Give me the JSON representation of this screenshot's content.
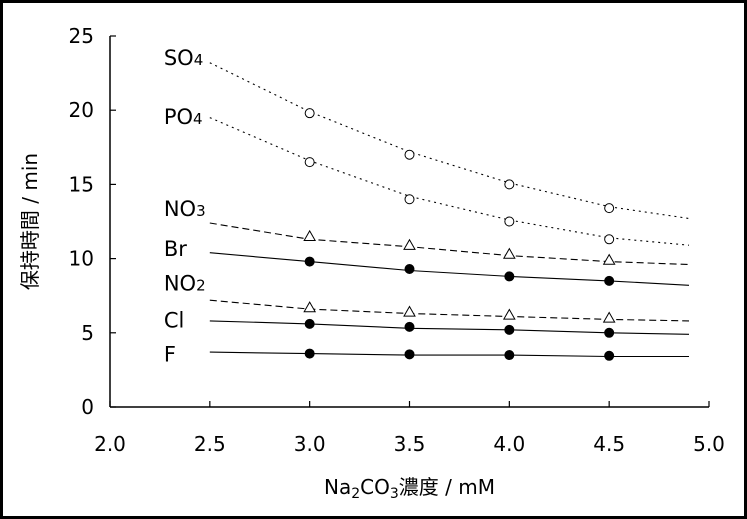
{
  "chart_data": {
    "type": "line",
    "title": "",
    "xlabel": "Na2CO3濃度 / mM",
    "xlabel_parts": [
      {
        "text": "Na",
        "sub": false
      },
      {
        "text": "2",
        "sub": true
      },
      {
        "text": "CO",
        "sub": false
      },
      {
        "text": "3",
        "sub": true
      },
      {
        "text": "濃度 / mM",
        "sub": false
      }
    ],
    "ylabel": "保持時間 / min",
    "xlim": [
      2.0,
      5.0
    ],
    "ylim": [
      0,
      25
    ],
    "x_ticks": [
      "2.0",
      "2.5",
      "3.0",
      "3.5",
      "4.0",
      "4.5",
      "5.0"
    ],
    "y_ticks": [
      "0",
      "5",
      "10",
      "15",
      "20",
      "25"
    ],
    "grid": false,
    "legend": "none",
    "series": [
      {
        "name": "SO4",
        "name_main": "SO",
        "name_sub": "4",
        "marker": "open-circle",
        "line": "dotted",
        "points": [
          [
            3.0,
            19.8
          ],
          [
            3.5,
            17.0
          ],
          [
            4.0,
            15.0
          ],
          [
            4.5,
            13.4
          ]
        ],
        "fit": [
          [
            2.5,
            23.2
          ],
          [
            3.0,
            19.9
          ],
          [
            3.5,
            17.2
          ],
          [
            4.0,
            15.1
          ],
          [
            4.5,
            13.5
          ],
          [
            4.9,
            12.7
          ]
        ],
        "label_anchor": [
          2.5,
          23.6
        ]
      },
      {
        "name": "PO4",
        "name_main": "PO",
        "name_sub": "4",
        "marker": "open-circle",
        "line": "dotted",
        "points": [
          [
            3.0,
            16.5
          ],
          [
            3.5,
            14.0
          ],
          [
            4.0,
            12.5
          ],
          [
            4.5,
            11.3
          ]
        ],
        "fit": [
          [
            2.5,
            19.5
          ],
          [
            3.0,
            16.6
          ],
          [
            3.5,
            14.2
          ],
          [
            4.0,
            12.6
          ],
          [
            4.5,
            11.4
          ],
          [
            4.9,
            10.9
          ]
        ],
        "label_anchor": [
          2.5,
          19.6
        ]
      },
      {
        "name": "NO3",
        "name_main": "NO",
        "name_sub": "3",
        "marker": "open-triangle",
        "line": "dashed",
        "points": [
          [
            3.0,
            11.5
          ],
          [
            3.5,
            10.9
          ],
          [
            4.0,
            10.3
          ],
          [
            4.5,
            9.9
          ]
        ],
        "fit": [
          [
            2.5,
            12.4
          ],
          [
            3.0,
            11.3
          ],
          [
            3.5,
            10.8
          ],
          [
            4.0,
            10.2
          ],
          [
            4.5,
            9.8
          ],
          [
            4.9,
            9.6
          ]
        ],
        "label_anchor": [
          2.5,
          13.4
        ]
      },
      {
        "name": "Br",
        "name_main": "Br",
        "name_sub": "",
        "marker": "filled-circle",
        "line": "solid",
        "points": [
          [
            3.0,
            9.8
          ],
          [
            3.5,
            9.3
          ],
          [
            4.0,
            8.8
          ],
          [
            4.5,
            8.5
          ]
        ],
        "fit": [
          [
            2.5,
            10.4
          ],
          [
            3.0,
            9.8
          ],
          [
            3.5,
            9.2
          ],
          [
            4.0,
            8.8
          ],
          [
            4.5,
            8.5
          ],
          [
            4.9,
            8.2
          ]
        ],
        "label_anchor": [
          2.5,
          10.7
        ]
      },
      {
        "name": "NO2",
        "name_main": "NO",
        "name_sub": "2",
        "marker": "open-triangle",
        "line": "dashed",
        "points": [
          [
            3.0,
            6.7
          ],
          [
            3.5,
            6.4
          ],
          [
            4.0,
            6.2
          ],
          [
            4.5,
            6.0
          ]
        ],
        "fit": [
          [
            2.5,
            7.2
          ],
          [
            3.0,
            6.6
          ],
          [
            3.5,
            6.3
          ],
          [
            4.0,
            6.1
          ],
          [
            4.5,
            5.9
          ],
          [
            4.9,
            5.8
          ]
        ],
        "label_anchor": [
          2.5,
          8.4
        ]
      },
      {
        "name": "Cl",
        "name_main": "Cl",
        "name_sub": "",
        "marker": "filled-circle",
        "line": "solid",
        "points": [
          [
            3.0,
            5.6
          ],
          [
            3.5,
            5.4
          ],
          [
            4.0,
            5.2
          ],
          [
            4.5,
            5.0
          ]
        ],
        "fit": [
          [
            2.5,
            5.8
          ],
          [
            3.0,
            5.6
          ],
          [
            3.5,
            5.3
          ],
          [
            4.0,
            5.2
          ],
          [
            4.5,
            5.0
          ],
          [
            4.9,
            4.9
          ]
        ],
        "label_anchor": [
          2.5,
          5.9
        ]
      },
      {
        "name": "F",
        "name_main": "F",
        "name_sub": "",
        "marker": "filled-circle",
        "line": "solid",
        "points": [
          [
            3.0,
            3.6
          ],
          [
            3.5,
            3.55
          ],
          [
            4.0,
            3.5
          ],
          [
            4.5,
            3.45
          ]
        ],
        "fit": [
          [
            2.5,
            3.7
          ],
          [
            3.0,
            3.6
          ],
          [
            3.5,
            3.5
          ],
          [
            4.0,
            3.5
          ],
          [
            4.5,
            3.4
          ],
          [
            4.9,
            3.4
          ]
        ],
        "label_anchor": [
          2.5,
          3.6
        ]
      }
    ]
  }
}
